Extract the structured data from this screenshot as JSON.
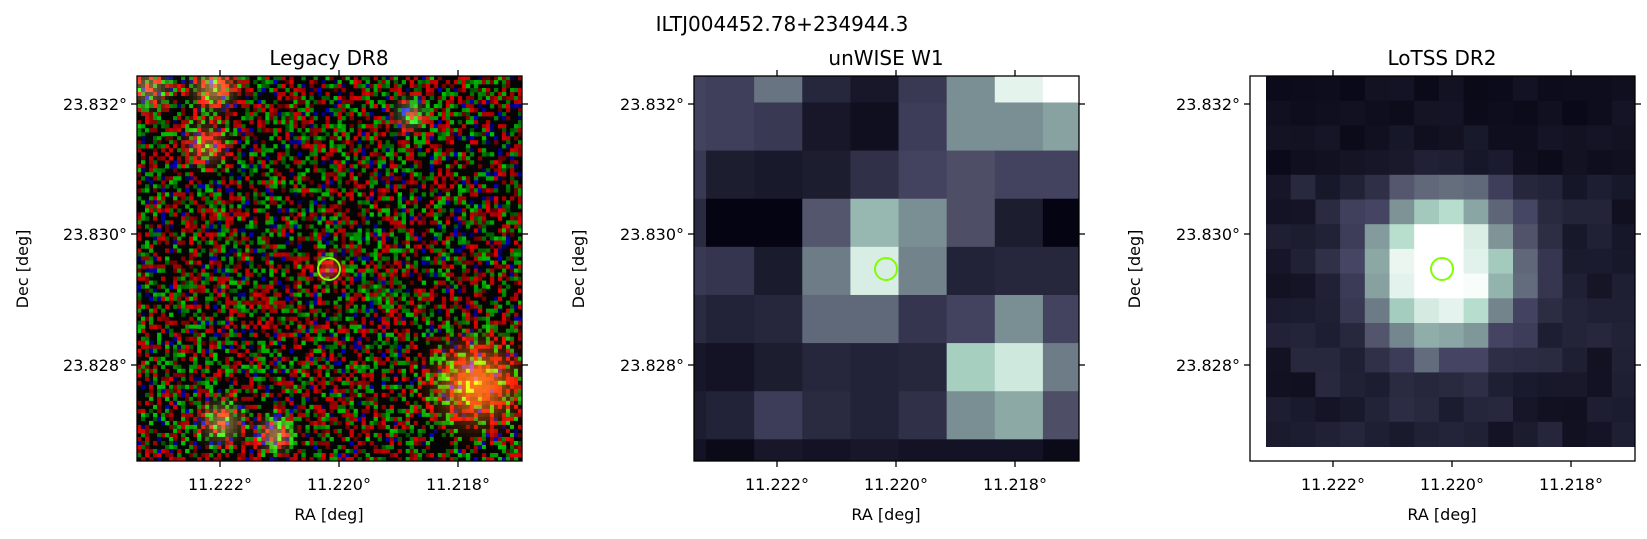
{
  "figure": {
    "title": "ILTJ004452.78+234944.3"
  },
  "panels": [
    {
      "title": "Legacy DR8",
      "xlabel": "RA [deg]",
      "ylabel": "Dec [deg]",
      "xticks": [
        "11.222°",
        "11.220°",
        "11.218°"
      ],
      "yticks": [
        "23.832°",
        "23.830°",
        "23.828°"
      ],
      "marker_color": "#7fff00",
      "image_kind": "rgb-optical"
    },
    {
      "title": "unWISE W1",
      "xlabel": "RA [deg]",
      "ylabel": "Dec [deg]",
      "xticks": [
        "11.222°",
        "11.220°",
        "11.218°"
      ],
      "yticks": [
        "23.832°",
        "23.830°",
        "23.828°"
      ],
      "marker_color": "#7fff00",
      "image_kind": "bone-colormap-infrared"
    },
    {
      "title": "LoTSS DR2",
      "xlabel": "RA [deg]",
      "ylabel": "Dec [deg]",
      "xticks": [
        "11.222°",
        "11.220°",
        "11.218°"
      ],
      "yticks": [
        "23.832°",
        "23.830°",
        "23.828°"
      ],
      "marker_color": "#7fff00",
      "image_kind": "bone-colormap-radio"
    }
  ]
}
